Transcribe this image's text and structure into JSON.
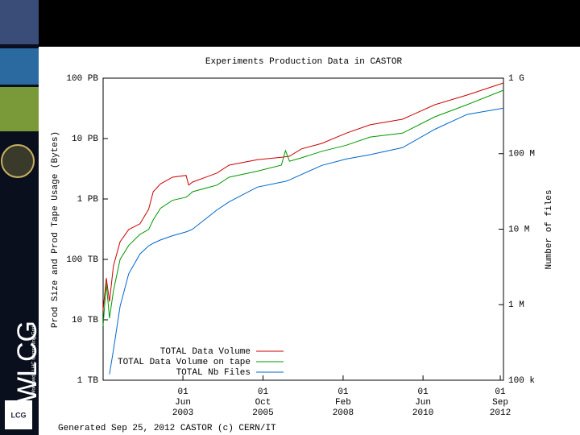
{
  "slide": {
    "logo": "WLCG",
    "logo_subtitle": "Worldwide LHC Computing Grid",
    "badge": "LCG"
  },
  "chart_data": {
    "type": "line",
    "title": "Experiments Production Data in CASTOR",
    "ylabel": "Prod Size and Prod Tape Usage (Bytes)",
    "y2label": "Number of files",
    "footer": "Generated Sep 25, 2012 CASTOR (c) CERN/IT",
    "x": [
      "2001-02-01",
      "2001-03-07",
      "2001-04-10",
      "2001-05-22",
      "2001-08-01",
      "2001-11-01",
      "2002-03-01",
      "2002-06-01",
      "2002-07-20",
      "2002-10-05",
      "2003-02-10",
      "2003-07-05",
      "2003-08-01",
      "2003-09-12",
      "2004-05-28",
      "2004-10-05",
      "2005-08-01",
      "2006-04-15",
      "2006-05-28",
      "2006-07-10",
      "2006-11-15",
      "2007-06-20",
      "2008-03-05",
      "2008-11-15",
      "2009-10-25",
      "2010-10-05",
      "2011-09-12",
      "2012-10-05"
    ],
    "series": [
      {
        "name": "TOTAL Data Volume",
        "color": "#cc0000",
        "axis": "y",
        "values": [
          14.5,
          49,
          20,
          78,
          196,
          312,
          389,
          676,
          1318,
          1778,
          2290,
          2455,
          1698,
          1905,
          2690,
          3630,
          4467,
          4898,
          5000,
          5100,
          6760,
          8318,
          12300,
          16900,
          20900,
          36300,
          52500,
          83200
        ]
      },
      {
        "name": "TOTAL Data Volume on tape",
        "color": "#009900",
        "axis": "y",
        "values": [
          8,
          40,
          10.6,
          30,
          100,
          170,
          260,
          312,
          450,
          700,
          950,
          1070,
          1150,
          1318,
          1698,
          2290,
          2884,
          3630,
          6310,
          4217,
          4800,
          6165,
          7762,
          10600,
          12300,
          22900,
          36300,
          63100
        ]
      },
      {
        "name": "TOTAL Nb Files",
        "color": "#0066cc",
        "axis": "y2",
        "values": [
          null,
          null,
          120000,
          250000,
          955000,
          2570000,
          4700000,
          6000000,
          6500000,
          7200000,
          8200000,
          9200000,
          9500000,
          10000000,
          18000000,
          23000000,
          36000000,
          42000000,
          43000000,
          45000000,
          53000000,
          70000000,
          85000000,
          97000000,
          120000000,
          210000000,
          330000000,
          400000000
        ]
      }
    ],
    "xlim": [
      "2001-02-01",
      "2012-10-05"
    ],
    "xticks": [
      {
        "value": "2003-06-01",
        "label": "01 Jun 2003"
      },
      {
        "value": "2005-10-01",
        "label": "01 Oct 2005"
      },
      {
        "value": "2008-02-01",
        "label": "01 Feb 2008"
      },
      {
        "value": "2010-06-01",
        "label": "01 Jun 2010"
      },
      {
        "value": "2012-09-01",
        "label": "01 Sep 2012"
      }
    ],
    "ylim": [
      1,
      100000
    ],
    "yticks": [
      {
        "value": 1,
        "label": "1 TB"
      },
      {
        "value": 10,
        "label": "10 TB"
      },
      {
        "value": 100,
        "label": "100 TB"
      },
      {
        "value": 1000,
        "label": "1 PB"
      },
      {
        "value": 10000,
        "label": "10 PB"
      },
      {
        "value": 100000,
        "label": "100 PB"
      }
    ],
    "y2lim": [
      100000,
      1000000000
    ],
    "y2ticks": [
      {
        "value": 100000,
        "label": "100 k"
      },
      {
        "value": 1000000,
        "label": "1 M"
      },
      {
        "value": 10000000,
        "label": "10 M"
      },
      {
        "value": 100000000,
        "label": "100 M"
      },
      {
        "value": 1000000000,
        "label": "1 G"
      }
    ],
    "log_scale": true,
    "grid": false,
    "legend": "lower left"
  }
}
